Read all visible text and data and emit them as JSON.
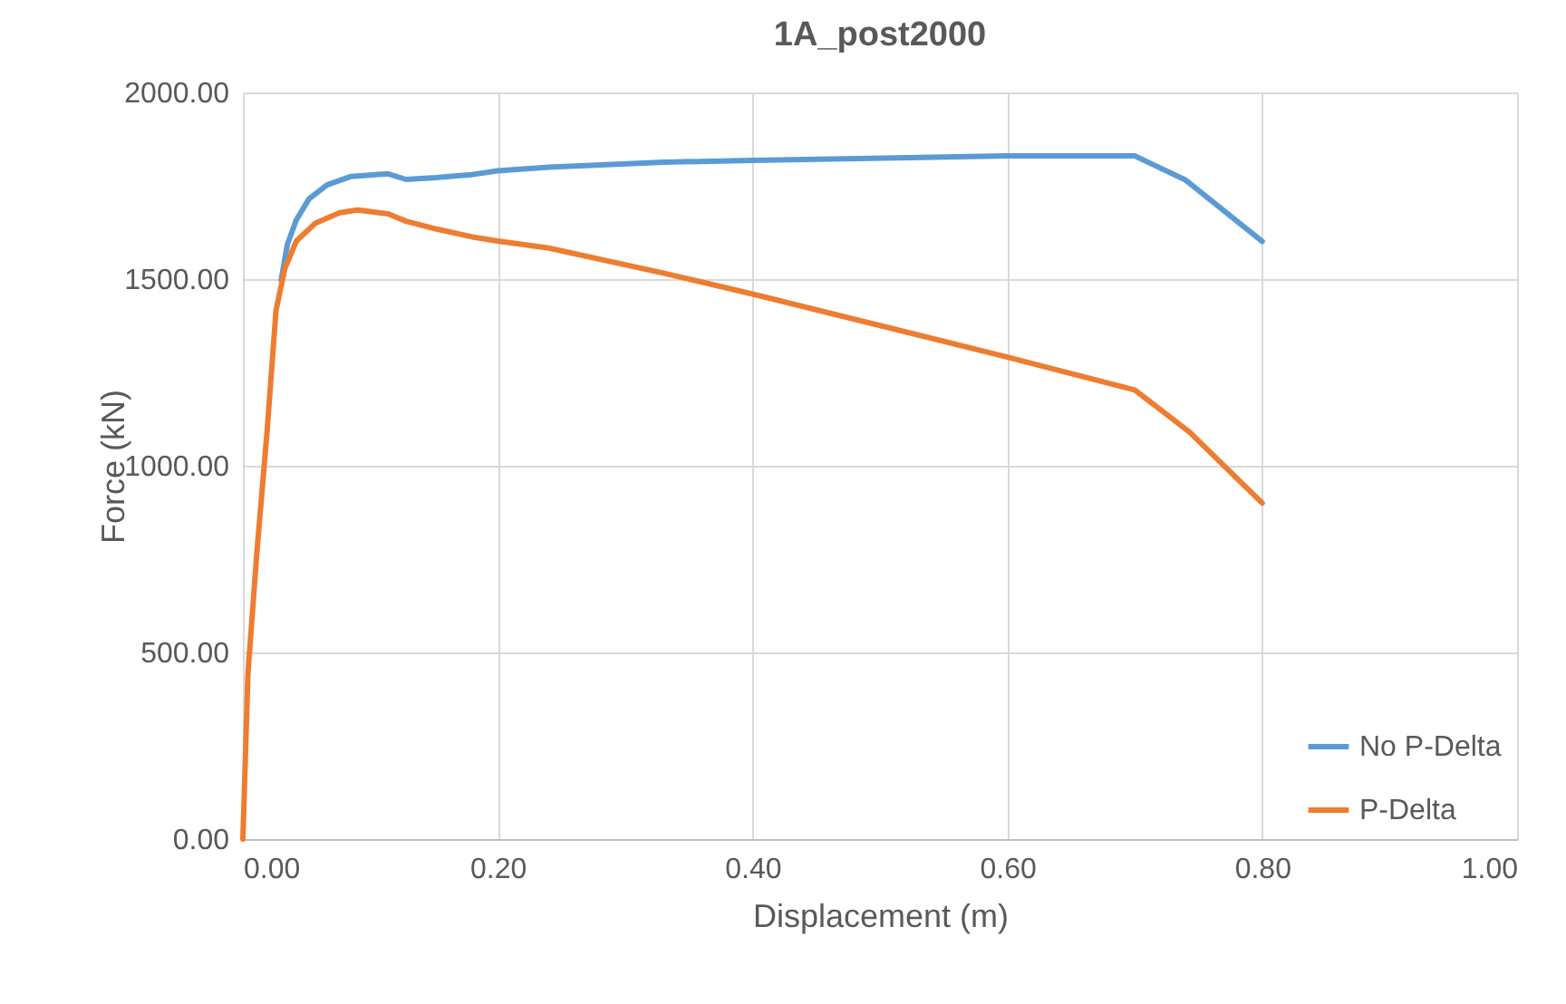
{
  "chart_data": {
    "type": "line",
    "title": "1A_post2000",
    "xlabel": "Displacement (m)",
    "ylabel": "Force (kN)",
    "xlim": [
      0,
      1
    ],
    "xticks": [
      {
        "value": 0,
        "label": "0.00"
      },
      {
        "value": 0.2,
        "label": "0.20"
      },
      {
        "value": 0.4,
        "label": "0.40"
      },
      {
        "value": 0.6,
        "label": "0.60"
      },
      {
        "value": 0.8,
        "label": "0.80"
      },
      {
        "value": 1,
        "label": "1.00"
      }
    ],
    "ylim": [
      0,
      2000
    ],
    "yticks": [
      {
        "value": 0,
        "label": "0.00"
      },
      {
        "value": 500,
        "label": "500.00"
      },
      {
        "value": 1000,
        "label": "1000.00"
      },
      {
        "value": 1500,
        "label": "1500.00"
      },
      {
        "value": 2000,
        "label": "2000.00"
      }
    ],
    "grid": true,
    "legend": "bottom right",
    "line_style": "solid",
    "series": [
      {
        "name": "No P-Delta",
        "color": "#5b9bd5",
        "x": [
          0.03,
          0.035,
          0.042,
          0.052,
          0.066,
          0.085,
          0.114,
          0.128,
          0.152,
          0.18,
          0.2,
          0.24,
          0.33,
          0.4,
          0.6,
          0.7,
          0.74,
          0.8
        ],
        "values": [
          1497,
          1594,
          1659,
          1715,
          1752,
          1775,
          1782,
          1767,
          1772,
          1780,
          1790,
          1800,
          1813,
          1818,
          1830,
          1830,
          1765,
          1601
        ]
      },
      {
        "name": "P-Delta",
        "color": "#ed7d31",
        "x": [
          0,
          0.004,
          0.011,
          0.019,
          0.026,
          0.033,
          0.042,
          0.057,
          0.076,
          0.09,
          0.114,
          0.128,
          0.152,
          0.18,
          0.2,
          0.24,
          0.33,
          0.4,
          0.6,
          0.7,
          0.743,
          0.8
        ],
        "values": [
          0,
          445,
          769,
          1092,
          1416,
          1529,
          1602,
          1650,
          1678,
          1685,
          1675,
          1655,
          1634,
          1613,
          1602,
          1583,
          1516,
          1460,
          1291,
          1203,
          1090,
          900
        ]
      }
    ]
  }
}
